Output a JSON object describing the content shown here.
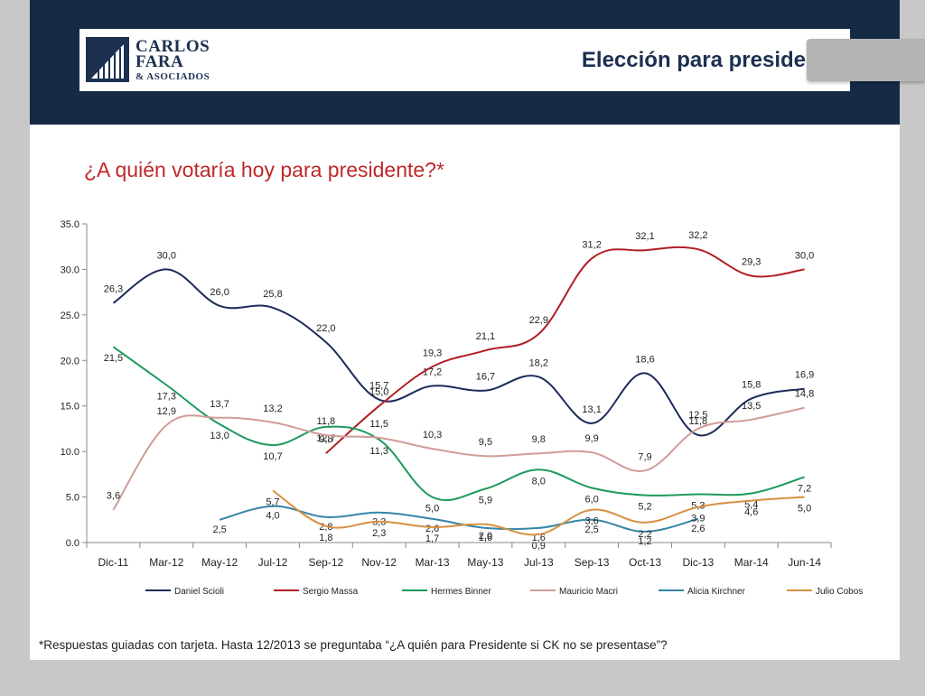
{
  "header": {
    "logo_line1": "CARLOS",
    "logo_line2": "FARA",
    "logo_line3": "& ASOCIADOS",
    "title": "Elección para presidente"
  },
  "question": "¿A quién votaría hoy para presidente?*",
  "footnote": "*Respuestas guiadas con tarjeta. Hasta 12/2013 se preguntaba “¿A quién para Presidente si CK no se presentase”?",
  "colors": {
    "header_band": "#152a45",
    "question": "#c0282a"
  },
  "chart_data": {
    "type": "line",
    "categories": [
      "Dic-11",
      "Mar-12",
      "May-12",
      "Jul-12",
      "Sep-12",
      "Nov-12",
      "Mar-13",
      "May-13",
      "Jul-13",
      "Sep-13",
      "Oct-13",
      "Dic-13",
      "Mar-14",
      "Jun-14"
    ],
    "ylim": [
      0,
      35
    ],
    "yticks": [
      "0.0",
      "5.0",
      "10.0",
      "15.0",
      "20.0",
      "25.0",
      "30.0",
      "35.0"
    ],
    "legend_position": "bottom",
    "series": [
      {
        "name": "Daniel Scioli",
        "color": "#1c2c5a",
        "values": [
          26.3,
          30.0,
          26.0,
          25.8,
          22.0,
          15.7,
          17.2,
          16.7,
          18.2,
          13.1,
          18.6,
          11.8,
          15.8,
          16.9
        ],
        "labels": [
          "26,3",
          "30,0",
          "26,0",
          "25,8",
          "22,0",
          "15,7",
          "17,2",
          "16,7",
          "18,2",
          "13,1",
          "18,6",
          "11,8",
          "15,8",
          "16,9"
        ]
      },
      {
        "name": "Sergio Massa",
        "color": "#b01e24",
        "values": [
          null,
          null,
          null,
          null,
          9.8,
          15.0,
          19.3,
          21.1,
          22.9,
          31.2,
          32.1,
          32.2,
          29.3,
          30.0
        ],
        "labels": [
          null,
          null,
          null,
          null,
          "9,8",
          "15,0",
          "19,3",
          "21,1",
          "22,9",
          "31,2",
          "32,1",
          "32,2",
          "29,3",
          "30,0"
        ]
      },
      {
        "name": "Hermes Binner",
        "color": "#1d9a5b",
        "values": [
          21.5,
          17.3,
          13.0,
          10.7,
          12.7,
          11.3,
          5.0,
          5.9,
          8.0,
          6.0,
          5.2,
          5.3,
          5.4,
          7.2
        ],
        "labels": [
          "21,5",
          "17,3",
          "13,0",
          "10,7",
          "12,7",
          "11,3",
          "5,0",
          "5,9",
          "8,0",
          "6,0",
          "5,2",
          "5,3",
          "5,4",
          "7,2"
        ]
      },
      {
        "name": "Mauricio Macri",
        "color": "#d09c98",
        "values": [
          3.6,
          12.9,
          13.7,
          13.2,
          11.8,
          11.5,
          10.3,
          9.5,
          9.8,
          9.9,
          7.9,
          12.5,
          13.5,
          14.8
        ],
        "labels": [
          "3,6",
          "12,9",
          "13,7",
          "13,2",
          "11,8",
          "11,5",
          "10,3",
          "9,5",
          "9,8",
          "9,9",
          "7,9",
          "12,5",
          "13,5",
          "14,8"
        ]
      },
      {
        "name": "Alicia Kirchner",
        "color": "#3585a6",
        "values": [
          null,
          null,
          2.5,
          4.0,
          2.8,
          3.3,
          2.6,
          1.6,
          1.6,
          2.5,
          1.2,
          2.6,
          null,
          null
        ],
        "labels": [
          null,
          null,
          "2,5",
          "4,0",
          "2,8",
          "3,3",
          "2,6",
          "1,6",
          "1,6",
          "2,5",
          "1,2",
          "2,6",
          null,
          null
        ]
      },
      {
        "name": "Julio Cobos",
        "color": "#d89040",
        "values": [
          null,
          null,
          null,
          5.7,
          1.8,
          2.3,
          1.7,
          2.0,
          0.9,
          3.6,
          2.2,
          3.9,
          4.6,
          5.0
        ],
        "labels": [
          null,
          null,
          null,
          "5,7",
          "1,8",
          "2,3",
          "1,7",
          "2,0",
          "0,9",
          "3,6",
          "2,2",
          "3,9",
          "4,6",
          "5,0"
        ]
      }
    ]
  }
}
